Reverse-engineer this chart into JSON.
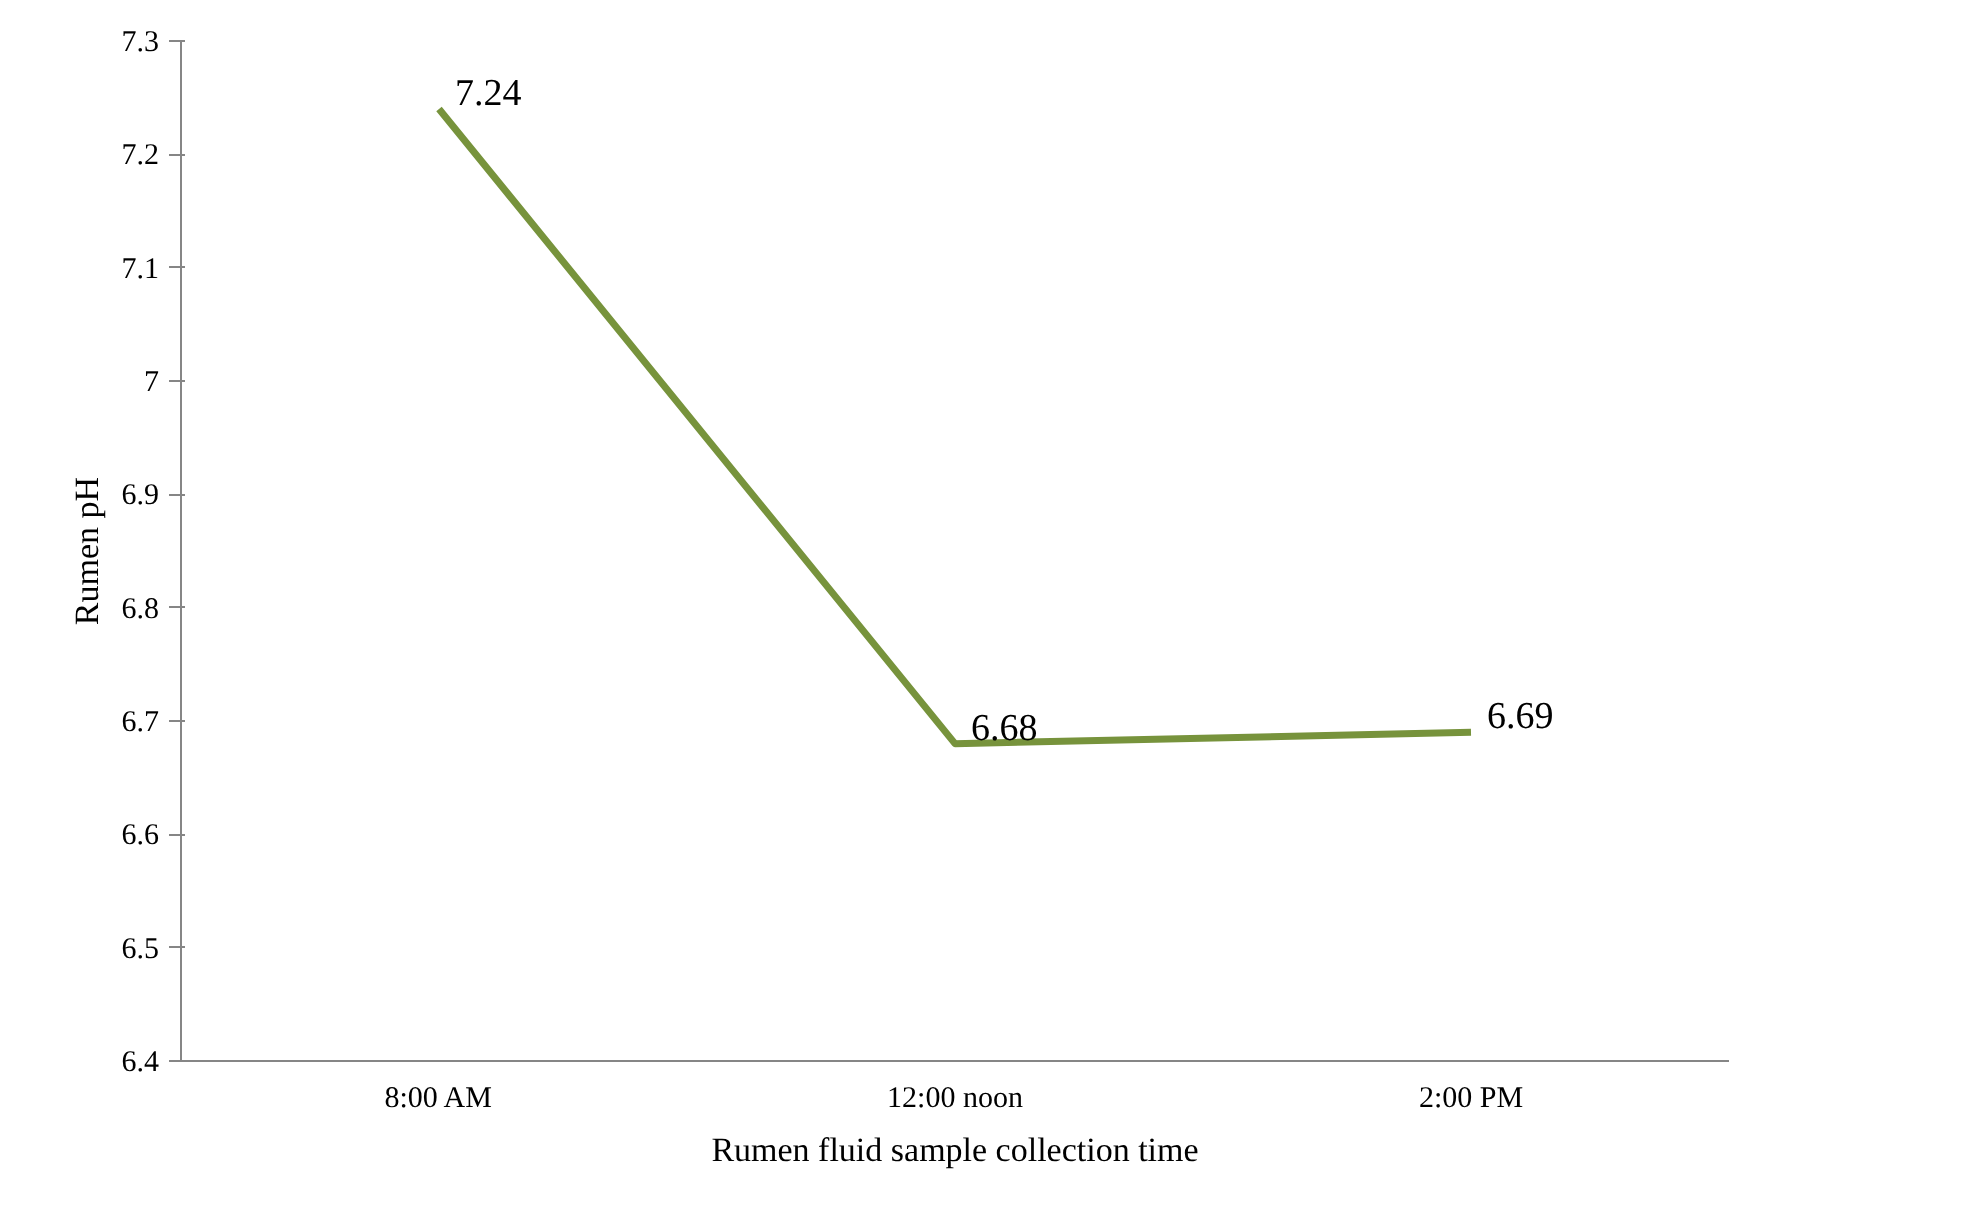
{
  "chart_data": {
    "type": "line",
    "xlabel": "Rumen fluid sample collection time",
    "ylabel": "Rumen pH",
    "categories": [
      "8:00 AM",
      "12:00 noon",
      "2:00 PM"
    ],
    "series": [
      {
        "color": "#77933c",
        "values": [
          7.24,
          6.68,
          6.69
        ]
      }
    ],
    "ylim": [
      6.4,
      7.3
    ],
    "yticks": [
      6.4,
      6.5,
      6.6,
      6.7,
      6.8,
      6.9,
      7,
      7.1,
      7.2,
      7.3
    ],
    "data_labels": true,
    "grid": false,
    "marker": "none",
    "line_style": "solid"
  }
}
